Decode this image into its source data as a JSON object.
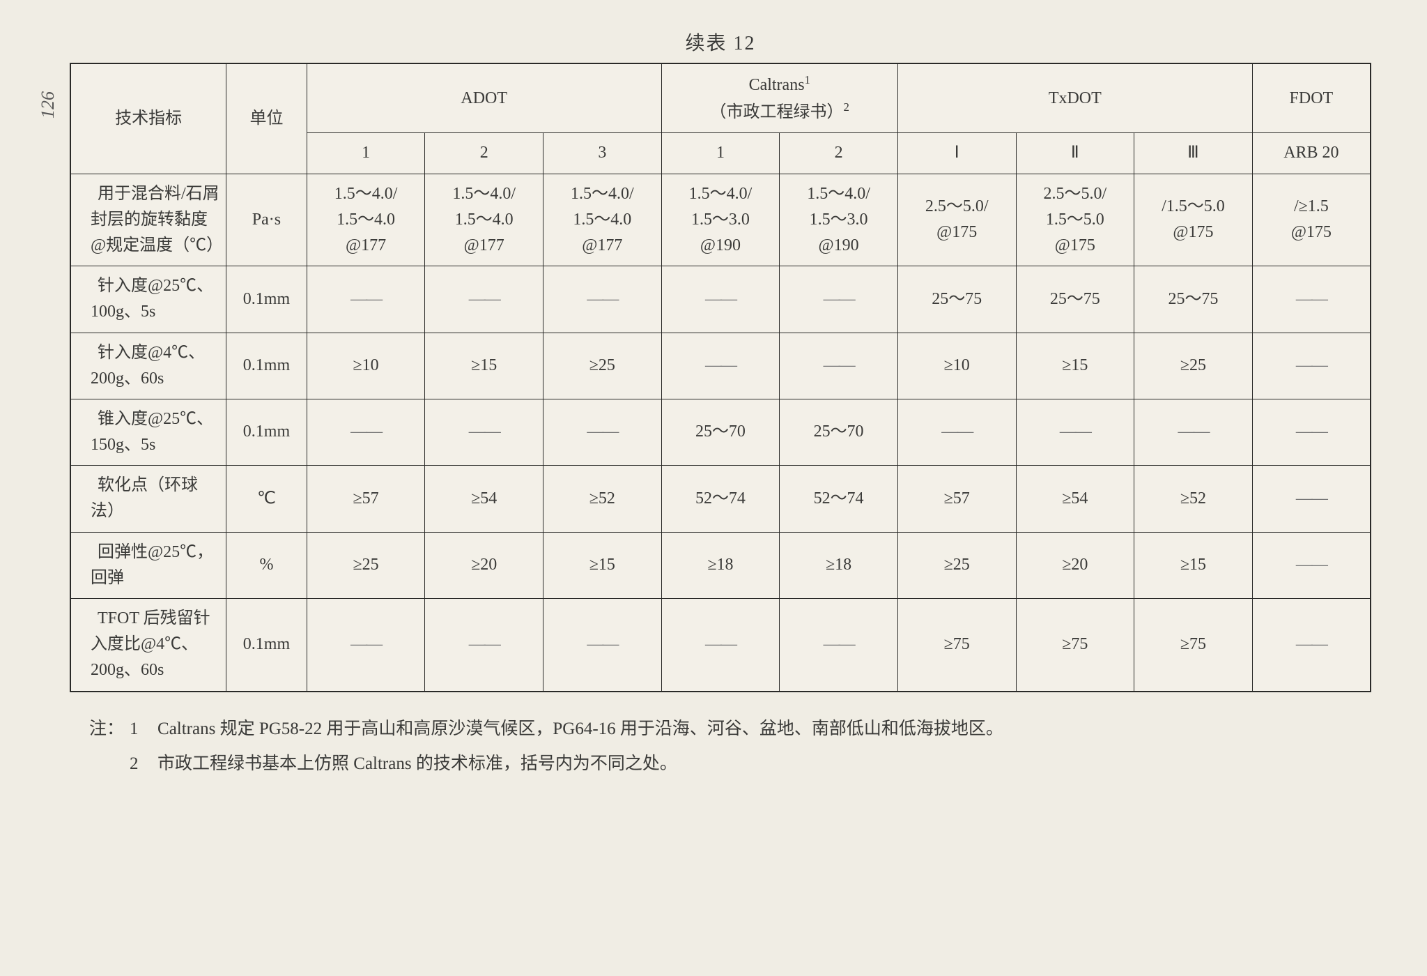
{
  "page_number": "126",
  "caption": "续表 12",
  "header": {
    "param": "技术指标",
    "unit": "单位",
    "adot": "ADOT",
    "caltrans": "Caltrans¹\n（市政工程绿书）²",
    "txdot": "TxDOT",
    "fdot": "FDOT",
    "sub": {
      "adot": [
        "1",
        "2",
        "3"
      ],
      "caltrans": [
        "1",
        "2"
      ],
      "txdot": [
        "Ⅰ",
        "Ⅱ",
        "Ⅲ"
      ],
      "fdot": [
        "ARB 20"
      ]
    }
  },
  "rows": [
    {
      "label": "　用于混合料/石屑封层的旋转黏度@规定温度（℃）",
      "unit": "Pa·s",
      "cells": [
        "1.5～4.0/\n1.5～4.0\n@177",
        "1.5～4.0/\n1.5～4.0\n@177",
        "1.5～4.0/\n1.5～4.0\n@177",
        "1.5～4.0/\n1.5～3.0\n@190",
        "1.5～4.0/\n1.5～3.0\n@190",
        "2.5～5.0/\n@175",
        "2.5～5.0/\n1.5～5.0\n@175",
        "/1.5～5.0\n@175",
        "/≥1.5\n@175"
      ]
    },
    {
      "label": "　针入度@25℃、100g、5s",
      "unit": "0.1mm",
      "cells": [
        "—",
        "—",
        "—",
        "—",
        "—",
        "25～75",
        "25～75",
        "25～75",
        "—"
      ]
    },
    {
      "label": "　针入度@4℃、200g、60s",
      "unit": "0.1mm",
      "cells": [
        "≥10",
        "≥15",
        "≥25",
        "—",
        "—",
        "≥10",
        "≥15",
        "≥25",
        "—"
      ]
    },
    {
      "label": "　锥入度@25℃、150g、5s",
      "unit": "0.1mm",
      "cells": [
        "—",
        "—",
        "—",
        "25～70",
        "25～70",
        "—",
        "—",
        "—",
        "—"
      ]
    },
    {
      "label": "　软化点（环球法）",
      "unit": "℃",
      "cells": [
        "≥57",
        "≥54",
        "≥52",
        "52～74",
        "52～74",
        "≥57",
        "≥54",
        "≥52",
        "—"
      ]
    },
    {
      "label": "　回弹性@25℃，回弹",
      "unit": "%",
      "cells": [
        "≥25",
        "≥20",
        "≥15",
        "≥18",
        "≥18",
        "≥25",
        "≥20",
        "≥15",
        "—"
      ]
    },
    {
      "label": "　TFOT 后残留针入度比@4℃、200g、60s",
      "unit": "0.1mm",
      "cells": [
        "—",
        "—",
        "—",
        "—",
        "—",
        "≥75",
        "≥75",
        "≥75",
        "—"
      ]
    }
  ],
  "notes": {
    "prefix": "注：",
    "items": [
      {
        "num": "1",
        "text": "Caltrans 规定 PG58-22 用于高山和高原沙漠气候区，PG64-16 用于沿海、河谷、盆地、南部低山和低海拔地区。"
      },
      {
        "num": "2",
        "text": "市政工程绿书基本上仿照 Caltrans 的技术标准，括号内为不同之处。"
      }
    ]
  }
}
